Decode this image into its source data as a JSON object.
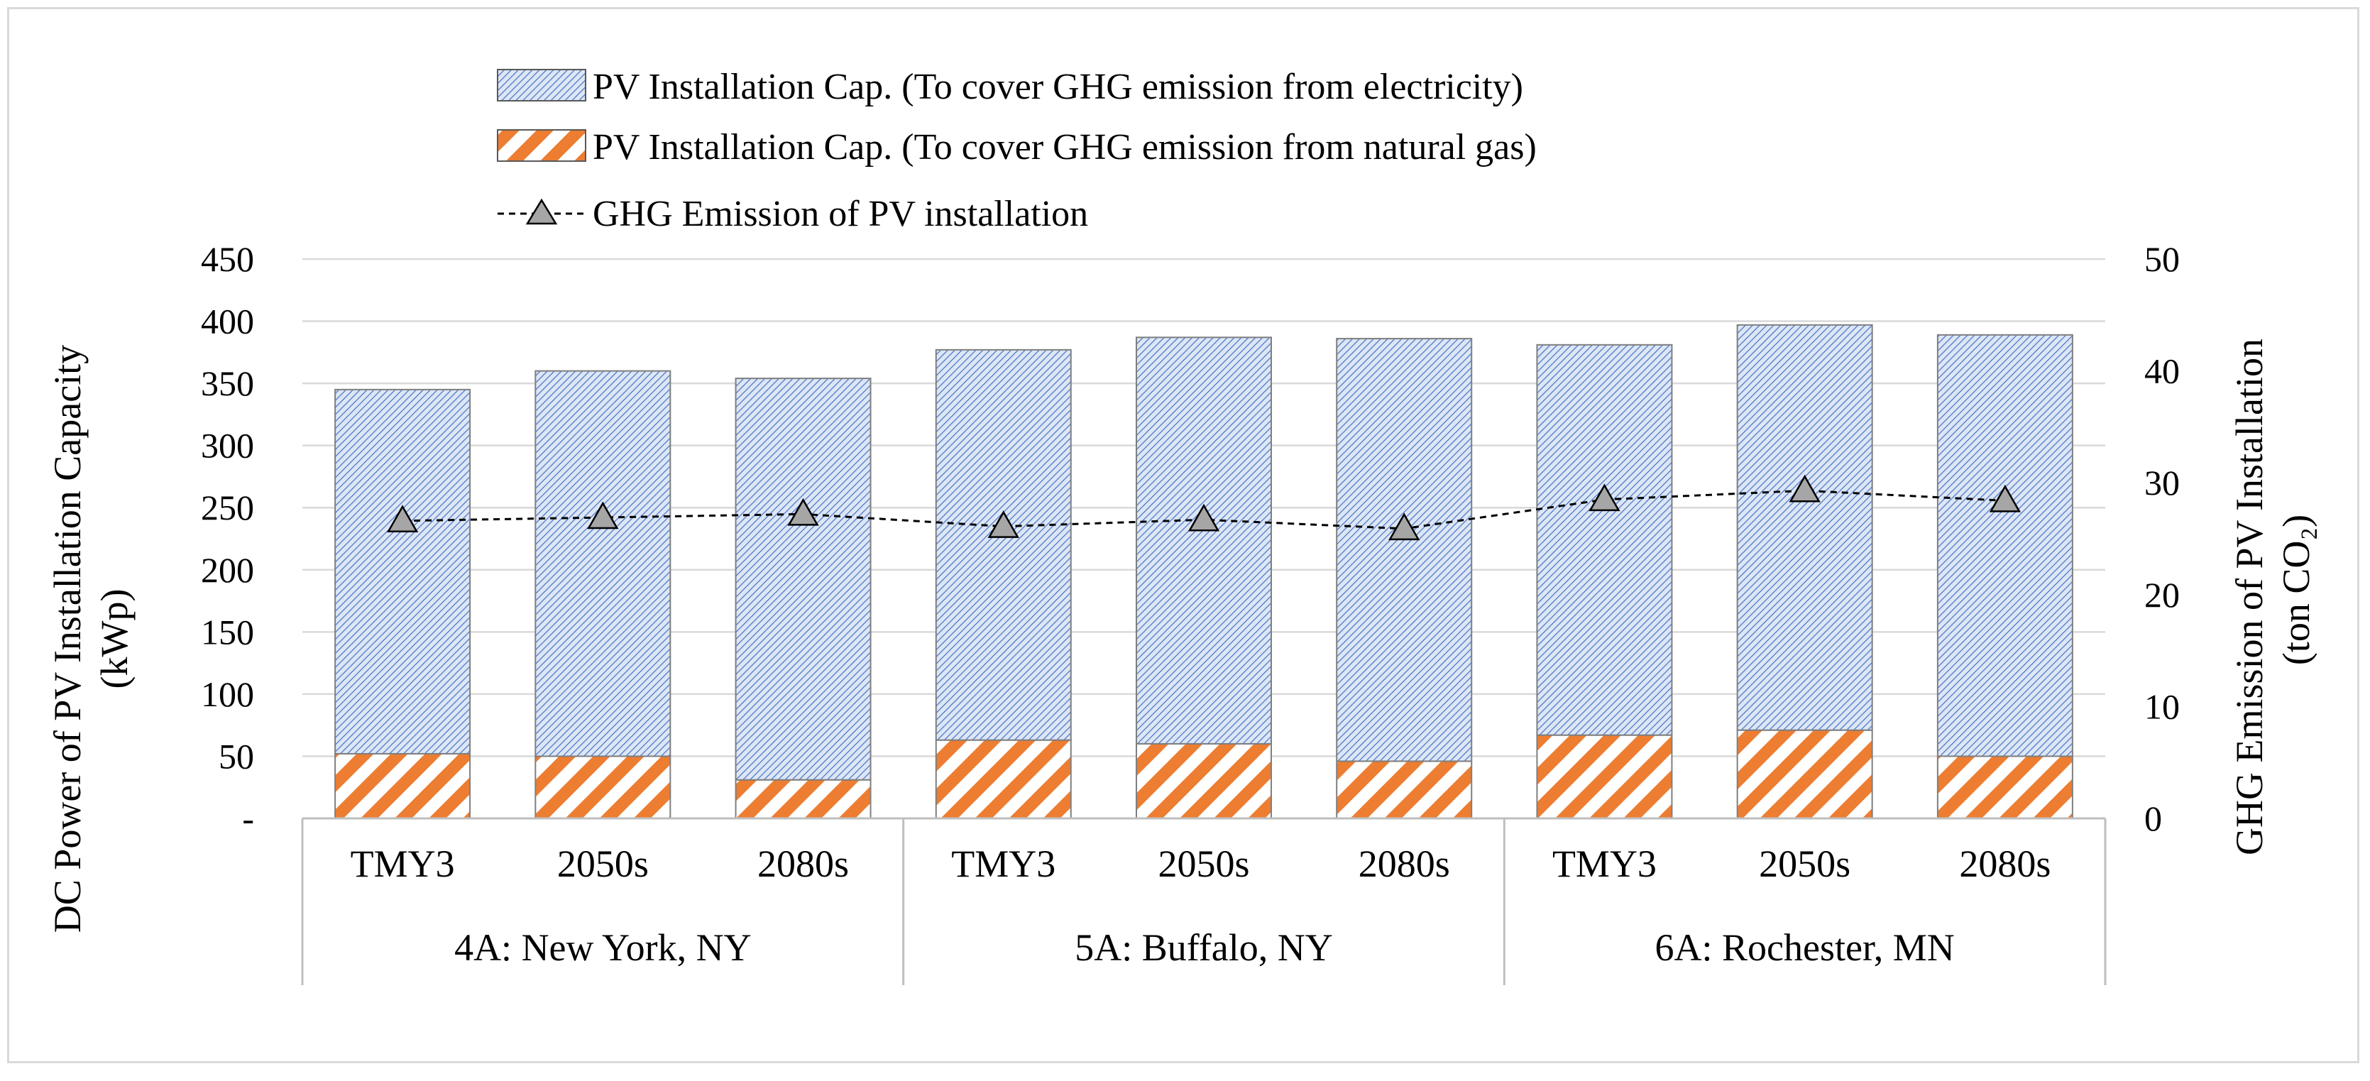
{
  "chart_data": {
    "type": "bar",
    "stacked": true,
    "group_labels": [
      "4A: New York, NY",
      "5A: Buffalo, NY",
      "6A: Rochester, MN"
    ],
    "categories": [
      "TMY3",
      "2050s",
      "2080s",
      "TMY3",
      "2050s",
      "2080s",
      "TMY3",
      "2050s",
      "2080s"
    ],
    "series": [
      {
        "name": "PV Installation Cap. (To cover GHG emission from natural gas)",
        "kind": "bar",
        "axis": "left",
        "color": "#ed7d31",
        "pattern": "orange-diagonal-stripes",
        "values": [
          52,
          50,
          31,
          63,
          60,
          46,
          67,
          71,
          50
        ]
      },
      {
        "name": "PV Installation Cap. (To cover GHG emission from electricity)",
        "kind": "bar",
        "axis": "left",
        "color": "#4472c4",
        "pattern": "blue-fine-hatch",
        "values": [
          293,
          310,
          323,
          314,
          327,
          340,
          314,
          326,
          339
        ]
      },
      {
        "name": "GHG Emission of PV installation",
        "kind": "line",
        "axis": "right",
        "marker": "triangle",
        "line_style": "dashed",
        "color": "#000000",
        "marker_fill": "#a6a6a6",
        "values": [
          26.6,
          26.9,
          27.2,
          26.1,
          26.7,
          25.9,
          28.5,
          29.3,
          28.4
        ]
      }
    ],
    "legend_order": [
      "PV Installation Cap. (To cover GHG emission from electricity)",
      "PV Installation Cap. (To cover GHG emission from natural gas)",
      "GHG Emission of PV installation"
    ],
    "y_left": {
      "label_line1": "DC Power of PV Installation Capacity",
      "label_line2": "(kWp)",
      "ylim": [
        0,
        450
      ],
      "ticks": [
        0,
        50,
        100,
        150,
        200,
        250,
        300,
        350,
        400,
        450
      ],
      "tick_labels": [
        "-",
        "50",
        "100",
        "150",
        "200",
        "250",
        "300",
        "350",
        "400",
        "450"
      ]
    },
    "y_right": {
      "label_line1": "GHG Emission of PV Installation",
      "label_line2": "(ton CO₂)",
      "ylim": [
        0,
        50
      ],
      "ticks": [
        0,
        10,
        20,
        30,
        40,
        50
      ],
      "tick_labels": [
        "0",
        "10",
        "20",
        "30",
        "40",
        "50"
      ]
    },
    "grid": true,
    "legend_position": "top"
  }
}
